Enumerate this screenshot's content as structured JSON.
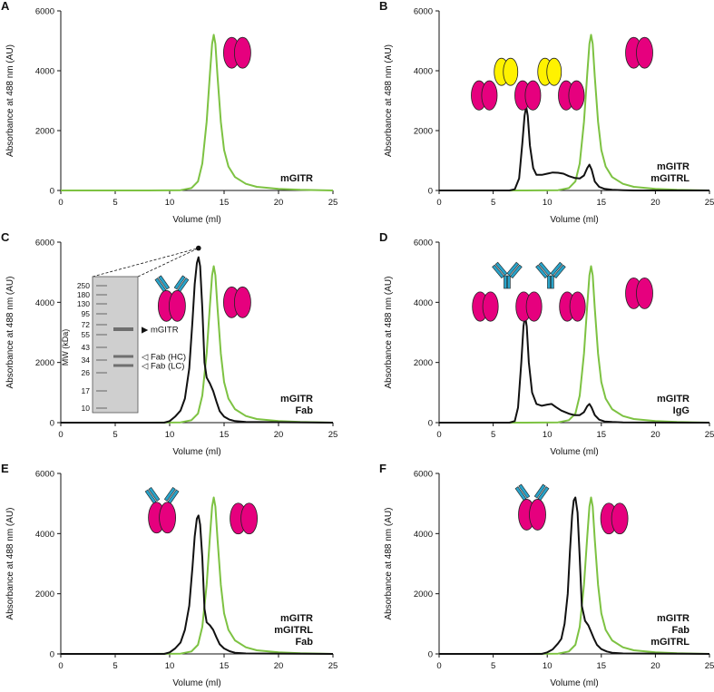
{
  "figure": {
    "name": "sec-chromatograms"
  },
  "colors": {
    "green": "#7dc242",
    "black": "#111111",
    "magenta": "#e6007e",
    "yellow": "#fff200",
    "blue": "#29a3c9",
    "gel_bg": "#cfcfcf"
  },
  "chart_data": [
    {
      "id": "A",
      "type": "line",
      "xlabel": "Volume (ml)",
      "ylabel": "Absorbance at 488 nm (AU)",
      "xlim": [
        0,
        25
      ],
      "ylim": [
        0,
        6000
      ],
      "xticks": [
        0,
        5,
        10,
        15,
        20,
        25
      ],
      "yticks": [
        0,
        2000,
        4000,
        6000
      ],
      "conditions": [
        "mGITR"
      ],
      "series": [
        {
          "name": "mGITR",
          "color": "green",
          "x": [
            0,
            8,
            11,
            12,
            12.6,
            13,
            13.4,
            13.7,
            13.9,
            14.05,
            14.2,
            14.4,
            14.7,
            15,
            15.4,
            16,
            17,
            18,
            20,
            22,
            25
          ],
          "y": [
            0,
            0,
            10,
            80,
            300,
            900,
            2300,
            3900,
            4900,
            5200,
            4900,
            3800,
            2300,
            1350,
            800,
            450,
            220,
            120,
            50,
            20,
            0
          ]
        }
      ],
      "glyphs": [
        {
          "type": "dimer",
          "x": 16.2,
          "y": 4600
        }
      ]
    },
    {
      "id": "B",
      "type": "line",
      "xlabel": "Volume (ml)",
      "ylabel": "Absorbance at 488 nm (AU)",
      "xlim": [
        0,
        25
      ],
      "ylim": [
        0,
        6000
      ],
      "xticks": [
        0,
        5,
        10,
        15,
        20,
        25
      ],
      "yticks": [
        0,
        2000,
        4000,
        6000
      ],
      "conditions": [
        "mGITR",
        "mGITRL"
      ],
      "series": [
        {
          "name": "mGITR",
          "color": "green",
          "x": [
            0,
            8,
            11,
            12,
            12.6,
            13,
            13.4,
            13.7,
            13.9,
            14.05,
            14.2,
            14.4,
            14.7,
            15,
            15.4,
            16,
            17,
            18,
            20,
            22,
            25
          ],
          "y": [
            0,
            0,
            10,
            80,
            300,
            900,
            2300,
            3900,
            4900,
            5200,
            4900,
            3800,
            2300,
            1350,
            800,
            450,
            220,
            120,
            50,
            20,
            0
          ]
        },
        {
          "name": "mGITR + mGITRL",
          "color": "black",
          "x": [
            0,
            6.5,
            7,
            7.4,
            7.7,
            7.9,
            8.05,
            8.2,
            8.4,
            8.7,
            9,
            9.5,
            10,
            10.5,
            11,
            11.5,
            12,
            12.5,
            13,
            13.4,
            13.7,
            13.9,
            14.1,
            14.4,
            14.8,
            15.3,
            16,
            17,
            18,
            25
          ],
          "y": [
            0,
            0,
            40,
            400,
            1600,
            2500,
            2800,
            2500,
            1500,
            750,
            520,
            520,
            560,
            600,
            590,
            560,
            480,
            420,
            400,
            500,
            750,
            860,
            700,
            300,
            120,
            50,
            20,
            10,
            0,
            0
          ]
        }
      ],
      "glyphs": [
        {
          "type": "complex",
          "x": 8.2,
          "y": 3600
        },
        {
          "type": "dimer",
          "x": 18.5,
          "y": 4600
        }
      ]
    },
    {
      "id": "C",
      "type": "line",
      "xlabel": "Volume (ml)",
      "ylabel": "Absorbance at 488 nm (AU)",
      "xlim": [
        0,
        25
      ],
      "ylim": [
        0,
        6000
      ],
      "xticks": [
        0,
        5,
        10,
        15,
        20,
        25
      ],
      "yticks": [
        0,
        2000,
        4000,
        6000
      ],
      "conditions": [
        "mGITR",
        "Fab"
      ],
      "series": [
        {
          "name": "mGITR",
          "color": "green",
          "x": [
            0,
            8,
            11,
            12,
            12.6,
            13,
            13.4,
            13.7,
            13.9,
            14.05,
            14.2,
            14.4,
            14.7,
            15,
            15.4,
            16,
            17,
            18,
            20,
            22,
            25
          ],
          "y": [
            0,
            0,
            10,
            80,
            300,
            900,
            2300,
            3900,
            4900,
            5200,
            4900,
            3800,
            2300,
            1350,
            800,
            450,
            220,
            120,
            50,
            20,
            0
          ]
        },
        {
          "name": "mGITR + Fab",
          "color": "black",
          "x": [
            0,
            9.5,
            10,
            10.5,
            11,
            11.4,
            11.8,
            12.1,
            12.3,
            12.5,
            12.65,
            12.8,
            13,
            13.2,
            13.4,
            13.7,
            14,
            14.3,
            14.6,
            15,
            15.5,
            16,
            17,
            25
          ],
          "y": [
            0,
            0,
            50,
            200,
            400,
            800,
            1800,
            3400,
            4600,
            5300,
            5500,
            5200,
            3800,
            2000,
            1500,
            1300,
            1050,
            700,
            380,
            200,
            100,
            50,
            20,
            0
          ]
        }
      ],
      "glyphs": [
        {
          "type": "fab-dimer",
          "x": 10.2,
          "y": 4000
        },
        {
          "type": "dimer",
          "x": 16.2,
          "y": 4000
        }
      ],
      "gel_inset": {
        "mw_label": "MW (kDa)",
        "markers": [
          "250",
          "180",
          "130",
          "95",
          "72",
          "55",
          "43",
          "34",
          "26",
          "17",
          "10"
        ],
        "bands": [
          {
            "label": "mGITR",
            "arrow": "▶",
            "filled": true
          },
          {
            "label": "Fab (HC)",
            "arrow": "◁",
            "filled": false
          },
          {
            "label": "Fab (LC)",
            "arrow": "◁",
            "filled": false
          }
        ]
      }
    },
    {
      "id": "D",
      "type": "line",
      "xlabel": "Volume (ml)",
      "ylabel": "Absorbance at 488 nm (AU)",
      "xlim": [
        0,
        25
      ],
      "ylim": [
        0,
        6000
      ],
      "xticks": [
        0,
        5,
        10,
        15,
        20,
        25
      ],
      "yticks": [
        0,
        2000,
        4000,
        6000
      ],
      "conditions": [
        "mGITR",
        "IgG"
      ],
      "series": [
        {
          "name": "mGITR",
          "color": "green",
          "x": [
            0,
            8,
            11,
            12,
            12.6,
            13,
            13.4,
            13.7,
            13.9,
            14.05,
            14.2,
            14.4,
            14.7,
            15,
            15.4,
            16,
            17,
            18,
            20,
            22,
            25
          ],
          "y": [
            0,
            0,
            10,
            80,
            300,
            900,
            2300,
            3900,
            4900,
            5200,
            4900,
            3800,
            2300,
            1350,
            800,
            450,
            220,
            120,
            50,
            20,
            0
          ]
        },
        {
          "name": "mGITR + IgG",
          "color": "black",
          "x": [
            0,
            6.5,
            7,
            7.3,
            7.6,
            7.8,
            7.95,
            8.1,
            8.3,
            8.6,
            9,
            9.5,
            10,
            10.4,
            10.8,
            11.3,
            12,
            12.5,
            13,
            13.4,
            13.7,
            13.9,
            14.1,
            14.4,
            14.8,
            15.3,
            16,
            17,
            25
          ],
          "y": [
            0,
            0,
            50,
            500,
            2000,
            3200,
            3550,
            3200,
            2000,
            1000,
            620,
            560,
            600,
            620,
            520,
            400,
            300,
            250,
            250,
            350,
            550,
            620,
            500,
            250,
            100,
            40,
            20,
            5,
            0
          ]
        }
      ],
      "glyphs": [
        {
          "type": "igg-complex",
          "x": 8.3,
          "y": 4100
        },
        {
          "type": "dimer",
          "x": 18.5,
          "y": 4300
        }
      ]
    },
    {
      "id": "E",
      "type": "line",
      "xlabel": "Volume (ml)",
      "ylabel": "Absorbance at 488 nm (AU)",
      "xlim": [
        0,
        25
      ],
      "ylim": [
        0,
        6000
      ],
      "xticks": [
        0,
        5,
        10,
        15,
        20,
        25
      ],
      "yticks": [
        0,
        2000,
        4000,
        6000
      ],
      "conditions": [
        "mGITR",
        "mGITRL",
        "Fab"
      ],
      "series": [
        {
          "name": "mGITR",
          "color": "green",
          "x": [
            0,
            8,
            11,
            12,
            12.6,
            13,
            13.4,
            13.7,
            13.9,
            14.05,
            14.2,
            14.4,
            14.7,
            15,
            15.4,
            16,
            17,
            18,
            20,
            22,
            25
          ],
          "y": [
            0,
            0,
            10,
            80,
            300,
            900,
            2300,
            3900,
            4900,
            5200,
            4900,
            3800,
            2300,
            1350,
            800,
            450,
            220,
            120,
            50,
            20,
            0
          ]
        },
        {
          "name": "mGITR + mGITRL + Fab",
          "color": "black",
          "x": [
            0,
            9.5,
            10,
            10.5,
            11,
            11.4,
            11.8,
            12.1,
            12.3,
            12.5,
            12.65,
            12.8,
            13,
            13.2,
            13.4,
            13.7,
            14,
            14.3,
            14.6,
            15,
            15.5,
            16,
            17,
            25
          ],
          "y": [
            0,
            0,
            50,
            180,
            380,
            800,
            1600,
            2900,
            3900,
            4500,
            4600,
            4300,
            3200,
            1500,
            1050,
            950,
            800,
            550,
            320,
            180,
            90,
            40,
            15,
            0
          ]
        }
      ],
      "glyphs": [
        {
          "type": "fab-dimer",
          "x": 9.3,
          "y": 4650
        },
        {
          "type": "dimer",
          "x": 16.8,
          "y": 4500
        }
      ]
    },
    {
      "id": "F",
      "type": "line",
      "xlabel": "Volume (ml)",
      "ylabel": "Absorbance at 488 nm (AU)",
      "xlim": [
        0,
        25
      ],
      "ylim": [
        0,
        6000
      ],
      "xticks": [
        0,
        5,
        10,
        15,
        20,
        25
      ],
      "yticks": [
        0,
        2000,
        4000,
        6000
      ],
      "conditions": [
        "mGITR",
        "Fab",
        "mGITRL"
      ],
      "series": [
        {
          "name": "mGITR",
          "color": "green",
          "x": [
            0,
            8,
            11,
            12,
            12.6,
            13,
            13.4,
            13.7,
            13.9,
            14.05,
            14.2,
            14.4,
            14.7,
            15,
            15.4,
            16,
            17,
            18,
            20,
            22,
            25
          ],
          "y": [
            0,
            0,
            10,
            80,
            300,
            900,
            2300,
            3900,
            4900,
            5200,
            4900,
            3800,
            2300,
            1350,
            800,
            450,
            220,
            120,
            50,
            20,
            0
          ]
        },
        {
          "name": "mGITR + Fab + mGITRL",
          "color": "black",
          "x": [
            0,
            9.5,
            10,
            10.5,
            11,
            11.3,
            11.6,
            11.9,
            12.1,
            12.3,
            12.45,
            12.6,
            12.8,
            13,
            13.2,
            13.5,
            13.8,
            14,
            14.3,
            14.6,
            15,
            15.5,
            16,
            17,
            25
          ],
          "y": [
            0,
            0,
            50,
            150,
            350,
            500,
            1000,
            2000,
            3400,
            4600,
            5100,
            5200,
            4700,
            3200,
            1600,
            1100,
            950,
            780,
            520,
            300,
            160,
            80,
            40,
            15,
            0
          ]
        }
      ],
      "glyphs": [
        {
          "type": "fab-dimer",
          "x": 8.6,
          "y": 4750
        },
        {
          "type": "dimer",
          "x": 16.2,
          "y": 4500
        }
      ]
    }
  ]
}
